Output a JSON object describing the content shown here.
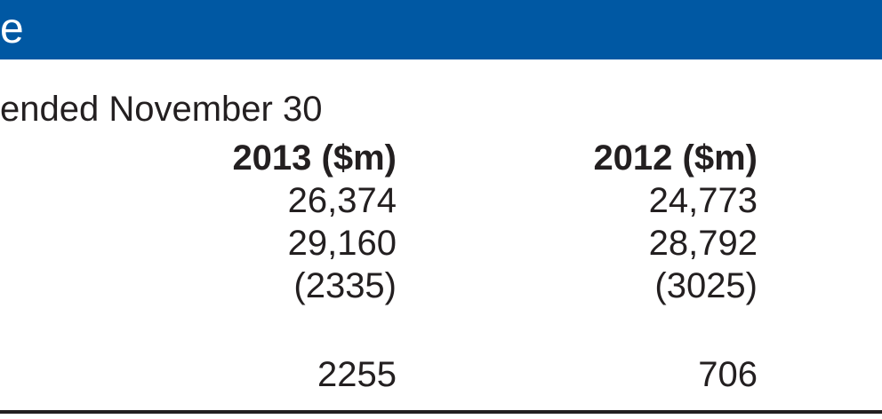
{
  "header": {
    "title": "e",
    "bar_color": "#0058a3"
  },
  "table": {
    "period_label": "ended November 30",
    "columns": [
      "2013 ($m)",
      "2012 ($m)"
    ],
    "rows": [
      [
        "26,374",
        "24,773"
      ],
      [
        "29,160",
        "28,792"
      ],
      [
        "(2335)",
        "(3025)"
      ],
      [
        "2255",
        "706"
      ]
    ]
  }
}
